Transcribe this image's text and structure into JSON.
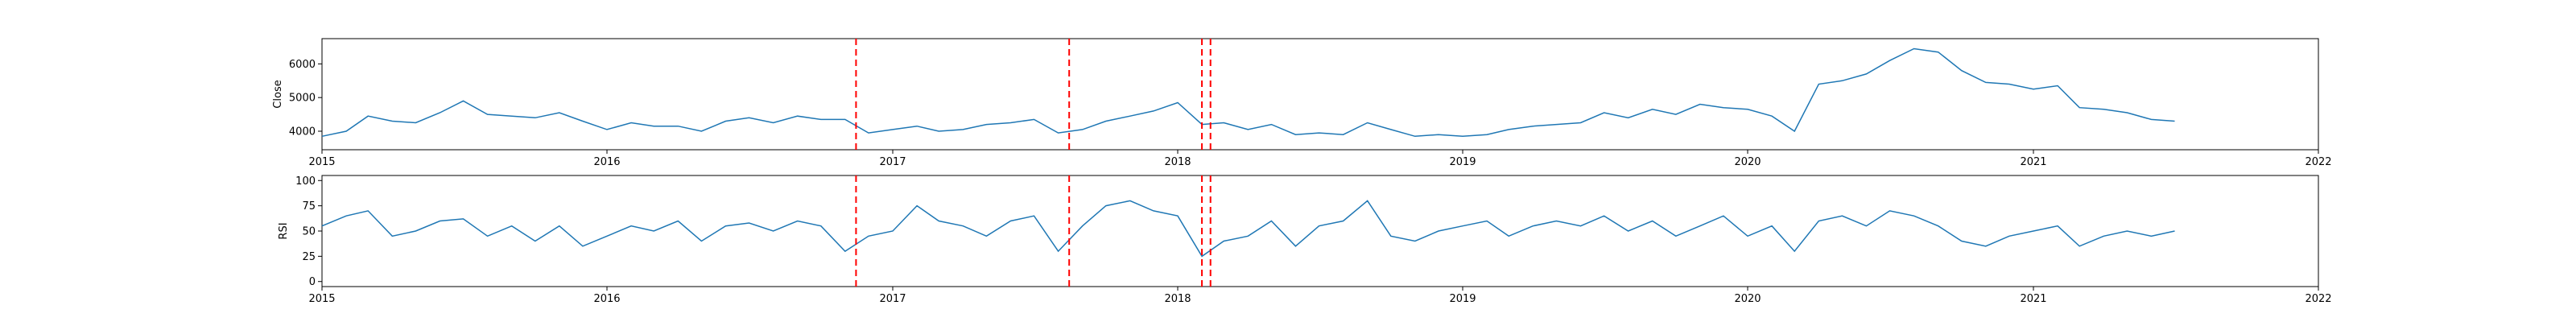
{
  "chart_data": [
    {
      "type": "line",
      "ylabel": "Close",
      "xlim": [
        "2015-01-01",
        "2022-01-01"
      ],
      "ylim": [
        3450,
        6750
      ],
      "x_ticks": [
        "2015",
        "2016",
        "2017",
        "2018",
        "2019",
        "2020",
        "2021",
        "2022"
      ],
      "y_ticks": [
        4000,
        5000,
        6000
      ],
      "line_color": "#1f77b4",
      "vline_color": "#ff0000",
      "vlines": [
        "2016-11-15",
        "2017-08-15",
        "2018-02-01",
        "2018-02-12"
      ],
      "series": [
        {
          "x": [
            "2015-01-01",
            "2015-02-01",
            "2015-03-01",
            "2015-04-01",
            "2015-05-01",
            "2015-06-01",
            "2015-07-01",
            "2015-08-01",
            "2015-09-01",
            "2015-10-01",
            "2015-11-01",
            "2015-12-01",
            "2016-01-01",
            "2016-02-01",
            "2016-03-01",
            "2016-04-01",
            "2016-05-01",
            "2016-06-01",
            "2016-07-01",
            "2016-08-01",
            "2016-09-01",
            "2016-10-01",
            "2016-11-01",
            "2016-12-01",
            "2017-01-01",
            "2017-02-01",
            "2017-03-01",
            "2017-04-01",
            "2017-05-01",
            "2017-06-01",
            "2017-07-01",
            "2017-08-01",
            "2017-09-01",
            "2017-10-01",
            "2017-11-01",
            "2017-12-01",
            "2018-01-01",
            "2018-02-01",
            "2018-03-01",
            "2018-04-01",
            "2018-05-01",
            "2018-06-01",
            "2018-07-01",
            "2018-08-01",
            "2018-09-01",
            "2018-10-01",
            "2018-11-01",
            "2018-12-01",
            "2019-01-01",
            "2019-02-01",
            "2019-03-01",
            "2019-04-01",
            "2019-05-01",
            "2019-06-01",
            "2019-07-01",
            "2019-08-01",
            "2019-09-01",
            "2019-10-01",
            "2019-11-01",
            "2019-12-01",
            "2020-01-01",
            "2020-02-01",
            "2020-03-01",
            "2020-04-01",
            "2020-05-01",
            "2020-06-01",
            "2020-07-01",
            "2020-08-01",
            "2020-09-01",
            "2020-10-01",
            "2020-11-01",
            "2020-12-01",
            "2021-01-01",
            "2021-02-01",
            "2021-03-01",
            "2021-04-01",
            "2021-05-01",
            "2021-06-01",
            "2021-07-01"
          ],
          "y": [
            3850,
            4000,
            4450,
            4300,
            4250,
            4550,
            4900,
            4500,
            4450,
            4400,
            4550,
            4300,
            4050,
            4250,
            4150,
            4150,
            4000,
            4300,
            4400,
            4250,
            4450,
            4350,
            4350,
            3950,
            4050,
            4150,
            4000,
            4050,
            4200,
            4250,
            4350,
            3950,
            4050,
            4300,
            4450,
            4600,
            4850,
            4200,
            4250,
            4050,
            4200,
            3900,
            3950,
            3900,
            4250,
            4050,
            3850,
            3900,
            3850,
            3900,
            4050,
            4150,
            4200,
            4250,
            4550,
            4400,
            4650,
            4500,
            4800,
            4700,
            4650,
            4450,
            4000,
            5400,
            5500,
            5700,
            6100,
            6450,
            6350,
            5800,
            5450,
            5400,
            5250,
            5350,
            4700,
            4650,
            4550,
            4350,
            4300
          ]
        }
      ]
    },
    {
      "type": "line",
      "ylabel": "RSI",
      "xlim": [
        "2015-01-01",
        "2022-01-01"
      ],
      "ylim": [
        -5,
        105
      ],
      "x_ticks": [
        "2015",
        "2016",
        "2017",
        "2018",
        "2019",
        "2020",
        "2021",
        "2022"
      ],
      "y_ticks": [
        0,
        25,
        50,
        75,
        100
      ],
      "line_color": "#1f77b4",
      "vline_color": "#ff0000",
      "vlines": [
        "2016-11-15",
        "2017-08-15",
        "2018-02-01",
        "2018-02-12"
      ],
      "series": [
        {
          "x": [
            "2015-01-01",
            "2015-02-01",
            "2015-03-01",
            "2015-04-01",
            "2015-05-01",
            "2015-06-01",
            "2015-07-01",
            "2015-08-01",
            "2015-09-01",
            "2015-10-01",
            "2015-11-01",
            "2015-12-01",
            "2016-01-01",
            "2016-02-01",
            "2016-03-01",
            "2016-04-01",
            "2016-05-01",
            "2016-06-01",
            "2016-07-01",
            "2016-08-01",
            "2016-09-01",
            "2016-10-01",
            "2016-11-01",
            "2016-12-01",
            "2017-01-01",
            "2017-02-01",
            "2017-03-01",
            "2017-04-01",
            "2017-05-01",
            "2017-06-01",
            "2017-07-01",
            "2017-08-01",
            "2017-09-01",
            "2017-10-01",
            "2017-11-01",
            "2017-12-01",
            "2018-01-01",
            "2018-02-01",
            "2018-03-01",
            "2018-04-01",
            "2018-05-01",
            "2018-06-01",
            "2018-07-01",
            "2018-08-01",
            "2018-09-01",
            "2018-10-01",
            "2018-11-01",
            "2018-12-01",
            "2019-01-01",
            "2019-02-01",
            "2019-03-01",
            "2019-04-01",
            "2019-05-01",
            "2019-06-01",
            "2019-07-01",
            "2019-08-01",
            "2019-09-01",
            "2019-10-01",
            "2019-11-01",
            "2019-12-01",
            "2020-01-01",
            "2020-02-01",
            "2020-03-01",
            "2020-04-01",
            "2020-05-01",
            "2020-06-01",
            "2020-07-01",
            "2020-08-01",
            "2020-09-01",
            "2020-10-01",
            "2020-11-01",
            "2020-12-01",
            "2021-01-01",
            "2021-02-01",
            "2021-03-01",
            "2021-04-01",
            "2021-05-01",
            "2021-06-01",
            "2021-07-01"
          ],
          "y": [
            55,
            65,
            70,
            45,
            50,
            60,
            62,
            45,
            55,
            40,
            55,
            35,
            45,
            55,
            50,
            60,
            40,
            55,
            58,
            50,
            60,
            55,
            30,
            45,
            50,
            75,
            60,
            55,
            45,
            60,
            65,
            30,
            55,
            75,
            80,
            70,
            65,
            25,
            40,
            45,
            60,
            35,
            55,
            60,
            80,
            45,
            40,
            50,
            55,
            60,
            45,
            55,
            60,
            55,
            65,
            50,
            60,
            45,
            55,
            65,
            45,
            55,
            30,
            60,
            65,
            55,
            70,
            65,
            55,
            40,
            35,
            45,
            50,
            55,
            35,
            45,
            50,
            45,
            50
          ]
        }
      ]
    }
  ]
}
